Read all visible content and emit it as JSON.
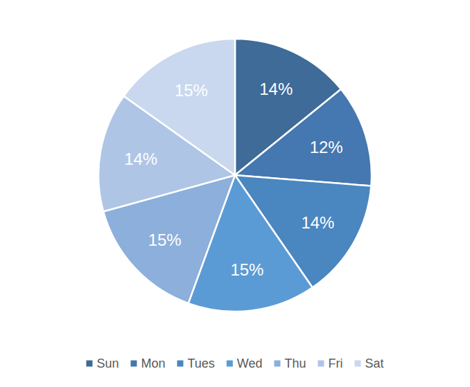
{
  "chart_data": {
    "type": "pie",
    "categories": [
      "Sun",
      "Mon",
      "Tues",
      "Wed",
      "Thu",
      "Fri",
      "Sat"
    ],
    "values": [
      14,
      12,
      14,
      15,
      15,
      14,
      15
    ],
    "value_labels": [
      "14%",
      "12%",
      "14%",
      "15%",
      "15%",
      "14%",
      "15%"
    ],
    "colors": [
      "#3e6b97",
      "#4577b0",
      "#4a86c0",
      "#5b9bd5",
      "#8cafdb",
      "#aec5e6",
      "#c9d8ee"
    ],
    "data_labels": true,
    "legend": "bottom"
  }
}
